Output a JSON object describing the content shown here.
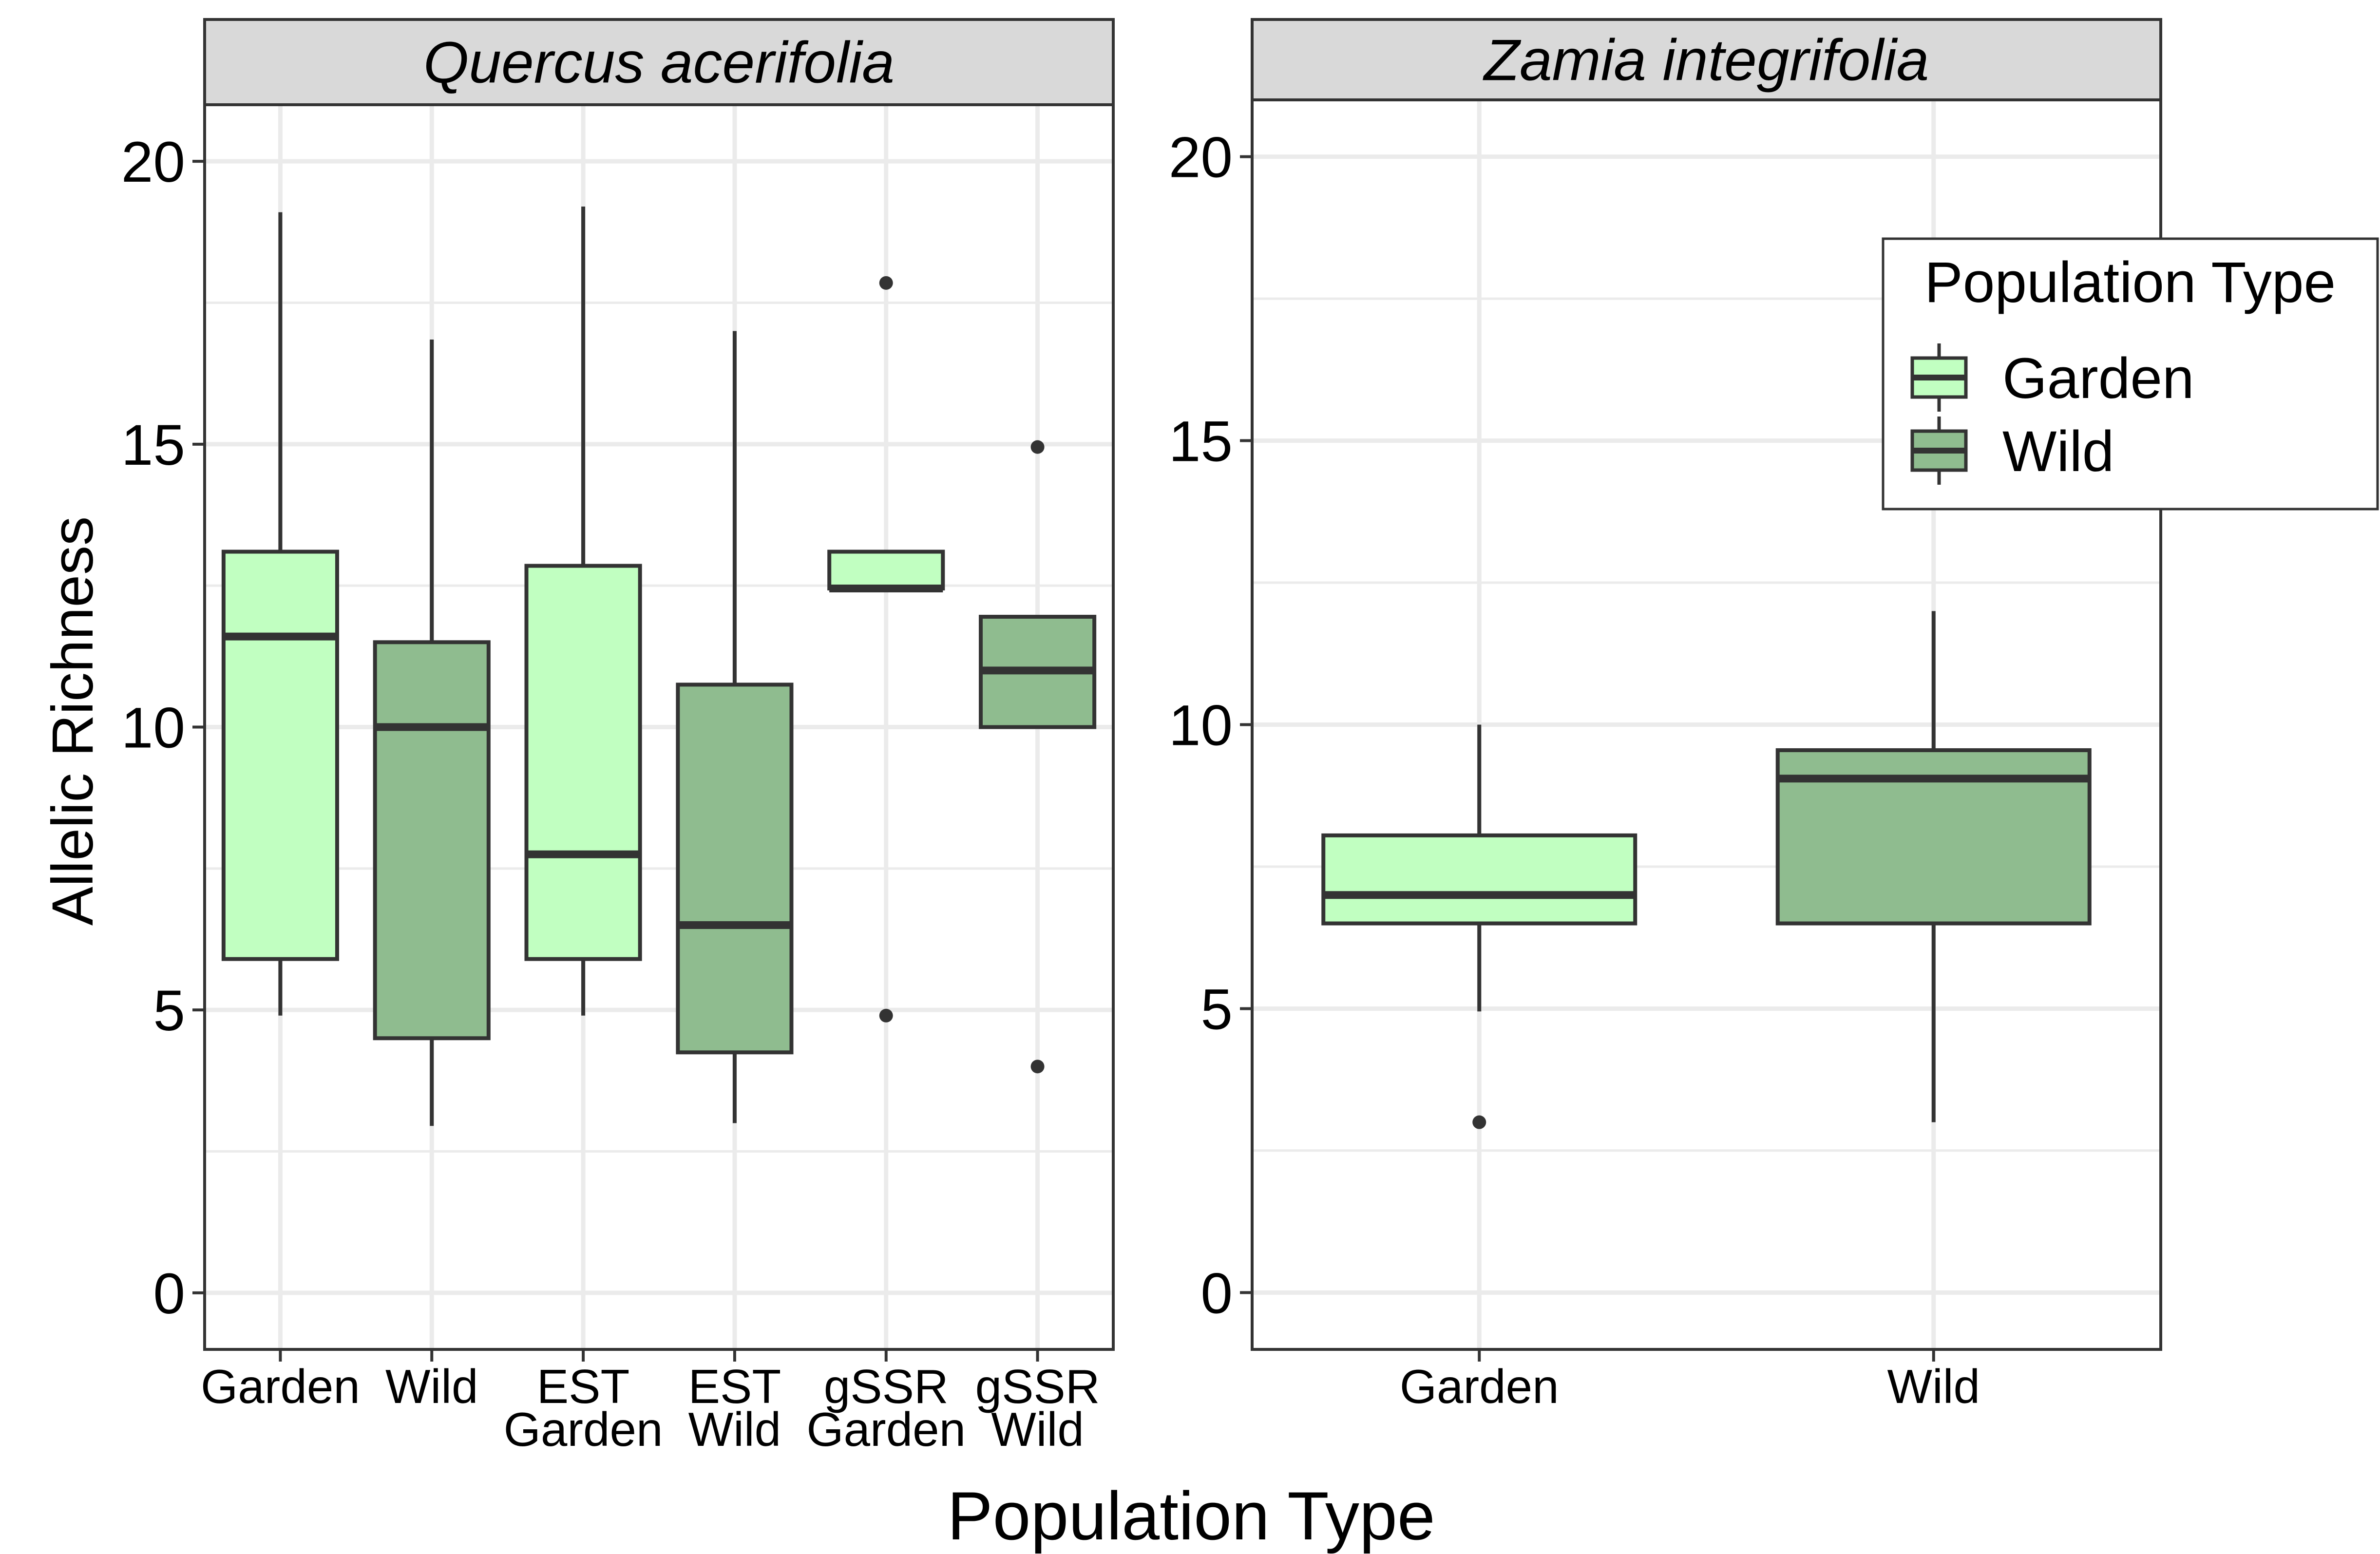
{
  "figure": {
    "xlabel": "Population Type",
    "ylabel": "Allelic Richness"
  },
  "chart_data": [
    {
      "type": "box",
      "panel_title": "Quercus acerifolia",
      "categories": [
        "Garden",
        "Wild",
        "EST\nGarden",
        "EST\nWild",
        "gSSR\nGarden",
        "gSSR\nWild"
      ],
      "yticks": [
        0,
        5,
        10,
        15,
        20
      ],
      "ylim": [
        -1,
        21
      ],
      "grid": true,
      "boxes": [
        {
          "label": "Garden",
          "group": "Garden",
          "whisker_low": 4.9,
          "q1": 5.9,
          "median": 11.6,
          "q3": 13.1,
          "whisker_high": 19.1,
          "outliers": []
        },
        {
          "label": "Wild",
          "group": "Wild",
          "whisker_low": 2.95,
          "q1": 4.5,
          "median": 10.0,
          "q3": 11.5,
          "whisker_high": 16.85,
          "outliers": []
        },
        {
          "label": "EST Garden",
          "group": "Garden",
          "whisker_low": 4.9,
          "q1": 5.9,
          "median": 7.75,
          "q3": 12.85,
          "whisker_high": 19.2,
          "outliers": []
        },
        {
          "label": "EST Wild",
          "group": "Wild",
          "whisker_low": 3.0,
          "q1": 4.25,
          "median": 6.5,
          "q3": 10.75,
          "whisker_high": 17.0,
          "outliers": []
        },
        {
          "label": "gSSR Garden",
          "group": "Garden",
          "whisker_low": 12.45,
          "q1": 12.45,
          "median": 12.45,
          "q3": 13.1,
          "whisker_high": 13.1,
          "outliers": [
            17.85,
            4.9
          ]
        },
        {
          "label": "gSSR Wild",
          "group": "Wild",
          "whisker_low": 10.0,
          "q1": 10.0,
          "median": 11.0,
          "q3": 11.95,
          "whisker_high": 11.95,
          "outliers": [
            14.95,
            4.0
          ]
        }
      ]
    },
    {
      "type": "box",
      "panel_title": "Zamia integrifolia",
      "categories": [
        "Garden",
        "Wild"
      ],
      "yticks": [
        0,
        5,
        10,
        15,
        20
      ],
      "ylim": [
        -1,
        21
      ],
      "grid": true,
      "boxes": [
        {
          "label": "Garden",
          "group": "Garden",
          "whisker_low": 4.95,
          "q1": 6.5,
          "median": 7.0,
          "q3": 8.05,
          "whisker_high": 10.0,
          "outliers": [
            3.0
          ]
        },
        {
          "label": "Wild",
          "group": "Wild",
          "whisker_low": 3.0,
          "q1": 6.5,
          "median": 9.05,
          "q3": 9.55,
          "whisker_high": 12.0,
          "outliers": []
        }
      ]
    }
  ],
  "legend": {
    "title": "Population Type",
    "placement": "top-right",
    "items": [
      {
        "label": "Garden",
        "color": "#c1ffc1"
      },
      {
        "label": "Wild",
        "color": "#8fbc8f"
      }
    ]
  },
  "colors": {
    "Garden": "#c1ffc1",
    "Wild": "#8fbc8f",
    "line": "#333333",
    "strip": "#d9d9d9",
    "grid": "#ebebeb"
  }
}
